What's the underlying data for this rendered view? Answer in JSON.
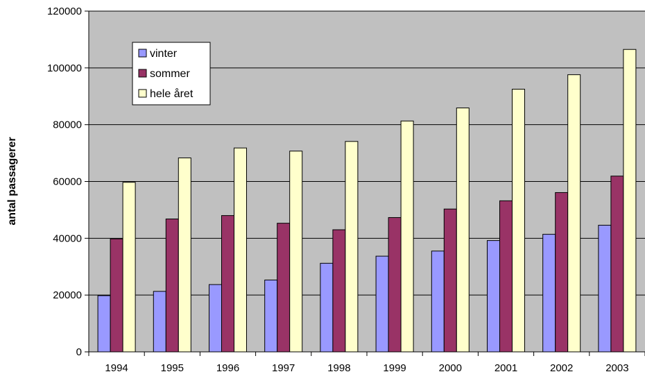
{
  "chart_data": {
    "type": "bar",
    "title": "",
    "xlabel": "",
    "ylabel": "antal passagerer",
    "categories": [
      "1994",
      "1995",
      "1996",
      "1997",
      "1998",
      "1999",
      "2000",
      "2001",
      "2002",
      "2003"
    ],
    "series": [
      {
        "name": "vinter",
        "color": "#9999ff",
        "values": [
          19800,
          21300,
          23700,
          25300,
          31200,
          33700,
          35500,
          39200,
          41400,
          44600
        ]
      },
      {
        "name": "sommer",
        "color": "#993366",
        "values": [
          39800,
          46800,
          48000,
          45300,
          43000,
          47300,
          50300,
          53200,
          56100,
          61900
        ]
      },
      {
        "name": "hele året",
        "color": "#ffffcc",
        "values": [
          59700,
          68300,
          71800,
          70700,
          74100,
          81300,
          85900,
          92500,
          97600,
          106500
        ]
      }
    ],
    "ylim": [
      0,
      120000
    ],
    "yticks": [
      "0",
      "20000",
      "40000",
      "60000",
      "80000",
      "100000",
      "120000"
    ],
    "grid": true,
    "legend_position": "top-left",
    "plot_background": "#c0c0c0"
  }
}
